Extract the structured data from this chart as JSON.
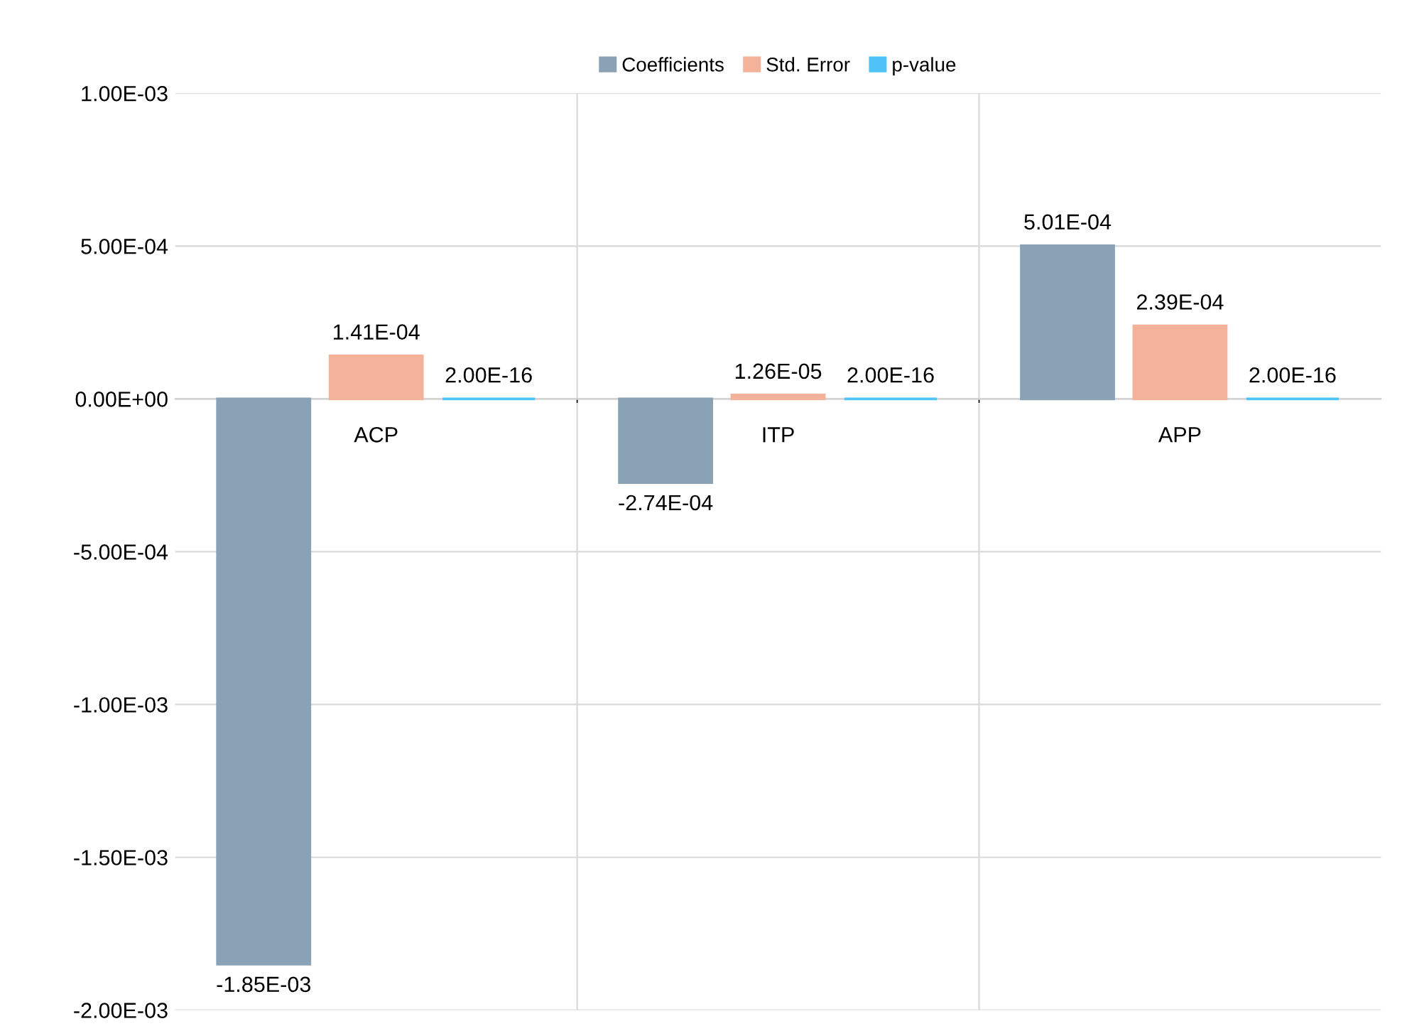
{
  "chart_data": {
    "type": "bar",
    "categories": [
      "ACP",
      "ITP",
      "APP"
    ],
    "series": [
      {
        "name": "Coefficients",
        "color": "#8aa2b5",
        "values": [
          -0.00185,
          -0.000274,
          0.000501
        ],
        "value_labels": [
          "-1.85E-03",
          "-2.74E-04",
          "5.01E-04"
        ]
      },
      {
        "name": "Std. Error",
        "color": "#f4b29a",
        "values": [
          0.000141,
          1.26e-05,
          0.000239
        ],
        "value_labels": [
          "1.41E-04",
          "1.26E-05",
          "2.39E-04"
        ]
      },
      {
        "name": "p-value",
        "color": "#4fc3f7",
        "values": [
          2e-16,
          2e-16,
          2e-16
        ],
        "value_labels": [
          "2.00E-16",
          "2.00E-16",
          "2.00E-16"
        ]
      }
    ],
    "ylim": [
      -0.002,
      0.001
    ],
    "yticks": [
      {
        "value": -0.002,
        "label": "-2.00E-03"
      },
      {
        "value": -0.0015,
        "label": "-1.50E-03"
      },
      {
        "value": -0.001,
        "label": "-1.00E-03"
      },
      {
        "value": -0.0005,
        "label": "-5.00E-04"
      },
      {
        "value": 0,
        "label": "0.00E+00"
      },
      {
        "value": 0.0005,
        "label": "5.00E-04"
      },
      {
        "value": 0.001,
        "label": "1.00E-03"
      }
    ],
    "grid": true,
    "legend": "top"
  }
}
